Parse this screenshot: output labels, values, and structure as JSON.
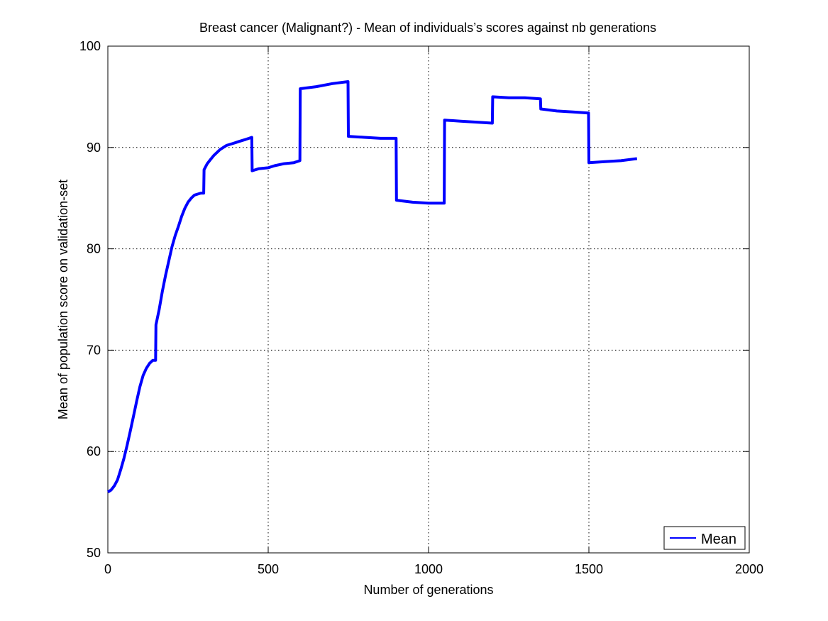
{
  "chart_data": {
    "type": "line",
    "title": "Breast cancer (Malignant?) - Mean of individuals’s scores against nb generations",
    "xlabel": "Number of generations",
    "ylabel": "Mean of population score on validation-set",
    "xlim": [
      0,
      2000
    ],
    "ylim": [
      50,
      100
    ],
    "x_ticks": [
      0,
      500,
      1000,
      1500,
      2000
    ],
    "y_ticks": [
      50,
      60,
      70,
      80,
      90,
      100
    ],
    "grid": true,
    "grid_style": "dotted",
    "legend": {
      "position": "bottom-right",
      "entries": [
        "Mean"
      ]
    },
    "series": [
      {
        "name": "Mean",
        "color": "#0000ff",
        "x": [
          0,
          10,
          20,
          30,
          40,
          50,
          60,
          70,
          80,
          90,
          100,
          110,
          120,
          130,
          140,
          149,
          150,
          160,
          170,
          180,
          190,
          200,
          210,
          220,
          230,
          240,
          250,
          260,
          270,
          280,
          290,
          299,
          300,
          310,
          320,
          330,
          340,
          350,
          360,
          370,
          380,
          390,
          400,
          410,
          420,
          430,
          440,
          449,
          450,
          470,
          500,
          520,
          550,
          580,
          599,
          600,
          650,
          700,
          749,
          750,
          800,
          850,
          899,
          900,
          950,
          1000,
          1049,
          1050,
          1100,
          1150,
          1199,
          1200,
          1250,
          1300,
          1349,
          1350,
          1400,
          1450,
          1499,
          1500,
          1550,
          1600,
          1650
        ],
        "values": [
          56.0,
          56.2,
          56.6,
          57.2,
          58.2,
          59.3,
          60.6,
          62.0,
          63.5,
          65.0,
          66.4,
          67.5,
          68.2,
          68.7,
          69.0,
          69.0,
          72.5,
          74.0,
          75.8,
          77.4,
          78.8,
          80.2,
          81.3,
          82.2,
          83.2,
          84.0,
          84.6,
          85.0,
          85.3,
          85.4,
          85.5,
          85.5,
          87.8,
          88.4,
          88.8,
          89.2,
          89.5,
          89.8,
          90.0,
          90.2,
          90.3,
          90.4,
          90.5,
          90.6,
          90.7,
          90.8,
          90.9,
          91.0,
          87.7,
          87.9,
          88.0,
          88.2,
          88.4,
          88.5,
          88.7,
          95.8,
          96.0,
          96.3,
          96.5,
          91.1,
          91.0,
          90.9,
          90.9,
          84.8,
          84.6,
          84.5,
          84.5,
          92.7,
          92.6,
          92.5,
          92.4,
          95.0,
          94.9,
          94.9,
          94.8,
          93.8,
          93.6,
          93.5,
          93.4,
          88.5,
          88.6,
          88.7,
          88.9
        ]
      }
    ]
  }
}
